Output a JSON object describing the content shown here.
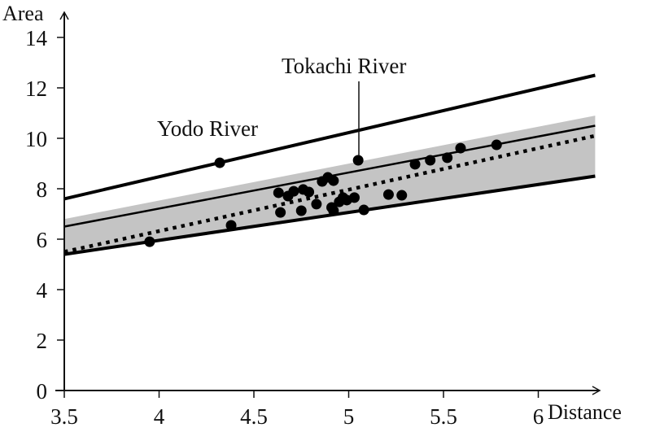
{
  "chart_data": {
    "type": "scatter",
    "title": "",
    "xlabel": "Distance",
    "ylabel": "Area",
    "xlim": [
      3.5,
      6.3
    ],
    "ylim": [
      0,
      15
    ],
    "grid": false,
    "x_ticks": [
      3.5,
      4,
      4.5,
      5,
      5.5,
      6
    ],
    "x_tick_labels": [
      "3.5",
      "4",
      "4.5",
      "5",
      "5.5",
      "6"
    ],
    "y_ticks": [
      0,
      2,
      4,
      6,
      8,
      10,
      12,
      14
    ],
    "y_tick_labels": [
      "0",
      "2",
      "4",
      "6",
      "8",
      "10",
      "12",
      "14"
    ],
    "points": [
      {
        "x": 3.95,
        "y": 5.9
      },
      {
        "x": 4.32,
        "y": 9.03
      },
      {
        "x": 4.38,
        "y": 6.55
      },
      {
        "x": 4.63,
        "y": 7.84
      },
      {
        "x": 4.64,
        "y": 7.06
      },
      {
        "x": 4.68,
        "y": 7.71
      },
      {
        "x": 4.71,
        "y": 7.9
      },
      {
        "x": 4.75,
        "y": 7.13
      },
      {
        "x": 4.76,
        "y": 7.97
      },
      {
        "x": 4.79,
        "y": 7.87
      },
      {
        "x": 4.83,
        "y": 7.39
      },
      {
        "x": 4.86,
        "y": 8.29
      },
      {
        "x": 4.89,
        "y": 8.45
      },
      {
        "x": 4.92,
        "y": 8.32
      },
      {
        "x": 4.91,
        "y": 7.26
      },
      {
        "x": 4.92,
        "y": 7.13
      },
      {
        "x": 4.95,
        "y": 7.48
      },
      {
        "x": 4.97,
        "y": 7.65
      },
      {
        "x": 4.99,
        "y": 7.55
      },
      {
        "x": 5.03,
        "y": 7.65
      },
      {
        "x": 5.05,
        "y": 9.13
      },
      {
        "x": 5.08,
        "y": 7.16
      },
      {
        "x": 5.21,
        "y": 7.77
      },
      {
        "x": 5.28,
        "y": 7.74
      },
      {
        "x": 5.35,
        "y": 8.97
      },
      {
        "x": 5.43,
        "y": 9.13
      },
      {
        "x": 5.52,
        "y": 9.23
      },
      {
        "x": 5.59,
        "y": 9.61
      },
      {
        "x": 5.78,
        "y": 9.74
      }
    ],
    "lines": [
      {
        "name": "upper-bound",
        "style": "thick-solid",
        "x": [
          3.5,
          6.3
        ],
        "y": [
          7.6,
          12.5
        ]
      },
      {
        "name": "regression",
        "style": "thin-solid",
        "x": [
          3.5,
          6.3
        ],
        "y": [
          6.5,
          10.5
        ]
      },
      {
        "name": "dotted-fit",
        "style": "dotted",
        "x": [
          3.5,
          6.3
        ],
        "y": [
          5.5,
          10.1
        ]
      },
      {
        "name": "lower-bound",
        "style": "thick-solid",
        "x": [
          3.5,
          6.3
        ],
        "y": [
          5.4,
          8.5
        ]
      }
    ],
    "band": {
      "name": "confidence-band",
      "x": [
        3.5,
        6.3
      ],
      "y_upper": [
        6.8,
        10.9
      ],
      "y_lower": [
        5.4,
        8.5
      ],
      "color": "#c4c4c4"
    },
    "annotations": [
      {
        "text": "Yodo River",
        "x": 4.32,
        "y": 9.03
      },
      {
        "text": "Tokachi River",
        "x": 5.05,
        "y": 9.13
      }
    ]
  },
  "labels": {
    "xlabel": "Distance",
    "ylabel": "Area",
    "yodo": "Yodo River",
    "tokachi": "Tokachi River"
  }
}
